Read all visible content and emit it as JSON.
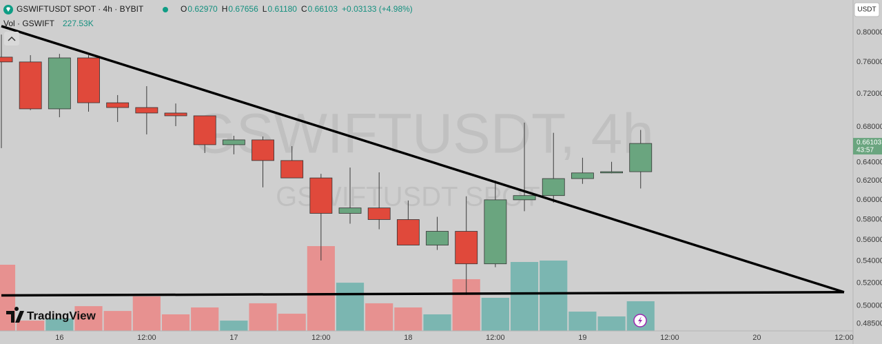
{
  "chart_data": {
    "type": "candlestick",
    "legend": {
      "title": "GSWIFTUSDT SPOT · 4h · BYBIT",
      "items": [
        {
          "key": "O",
          "value": "0.62970"
        },
        {
          "key": "H",
          "value": "0.67656"
        },
        {
          "key": "L",
          "value": "0.61180"
        },
        {
          "key": "C",
          "value": "0.66103"
        }
      ],
      "change": "+0.03133 (+4.98%)"
    },
    "watermark": "GSWIFTUSDT, 4h",
    "watermark_sub": "GSWIFTUSDT SPOT",
    "currency": "USDT",
    "logo": "TradingView",
    "price_label": {
      "text": "0.66103",
      "countdown": "43:57"
    },
    "categories": [
      null,
      null,
      "16",
      null,
      null,
      "12:00",
      null,
      null,
      "17",
      null,
      null,
      "12:00",
      null,
      null,
      "18",
      null,
      null,
      "12:00",
      null,
      null,
      "19",
      null,
      null,
      "12:00",
      null,
      null,
      "20",
      null,
      null,
      "12:00"
    ],
    "open": [
      0.7667,
      0.7604,
      0.7015,
      0.7657,
      0.7089,
      0.7031,
      0.6965,
      0.6932,
      0.6596,
      0.6651,
      0.6419,
      0.623,
      0.5862,
      0.5917,
      0.58,
      0.5551,
      0.5684,
      0.5375,
      0.6,
      0.6044,
      0.6223,
      0.6284,
      0.6297,
      null,
      null,
      null,
      null,
      null,
      null,
      null
    ],
    "high": [
      0.797,
      0.7693,
      0.771,
      0.7693,
      0.7183,
      0.7294,
      0.708,
      0.6932,
      0.6698,
      0.669,
      0.658,
      0.6274,
      0.6342,
      0.629,
      0.5993,
      0.5827,
      0.6036,
      0.6202,
      0.6851,
      0.6732,
      0.645,
      0.6405,
      0.67656,
      null,
      null,
      null,
      null,
      null,
      null,
      null
    ],
    "low": [
      0.6557,
      0.7,
      0.6915,
      0.6981,
      0.6859,
      0.6714,
      0.681,
      0.6503,
      0.6488,
      0.613,
      0.623,
      0.5406,
      0.5759,
      0.5704,
      0.5551,
      0.5505,
      0.5096,
      0.5344,
      0.5884,
      0.5971,
      0.6167,
      0.628,
      0.6118,
      null,
      null,
      null,
      null,
      null,
      null,
      null
    ],
    "close": [
      0.7604,
      0.7015,
      0.7657,
      0.7089,
      0.7031,
      0.6965,
      0.6932,
      0.6596,
      0.6651,
      0.6419,
      0.623,
      0.5862,
      0.5917,
      0.58,
      0.5551,
      0.5684,
      0.5375,
      0.6,
      0.6044,
      0.6223,
      0.6284,
      0.6297,
      0.66103,
      null,
      null,
      null,
      null,
      null,
      null,
      null
    ],
    "up_color": "#6aa57f",
    "down_color": "#e0493b",
    "ylim": [
      0.479,
      0.8458
    ],
    "log": true,
    "grid": false,
    "yticks": [
      {
        "value": 0.8,
        "label": "0.80000"
      },
      {
        "value": 0.76,
        "label": "0.76000"
      },
      {
        "value": 0.72,
        "label": "0.72000"
      },
      {
        "value": 0.68,
        "label": "0.68000"
      },
      {
        "value": 0.64,
        "label": "0.64000"
      },
      {
        "value": 0.62,
        "label": "0.62000"
      },
      {
        "value": 0.6,
        "label": "0.60000"
      },
      {
        "value": 0.58,
        "label": "0.58000"
      },
      {
        "value": 0.56,
        "label": "0.56000"
      },
      {
        "value": 0.54,
        "label": "0.54000"
      },
      {
        "value": 0.52,
        "label": "0.52000"
      },
      {
        "value": 0.5,
        "label": "0.50000"
      },
      {
        "value": 0.485,
        "label": "0.48500"
      }
    ],
    "volume": {
      "name": "Vol · GSWIFT",
      "last_label": "227.53K",
      "values": [
        508000,
        79000,
        95000,
        190000,
        153000,
        265000,
        127000,
        180000,
        79000,
        212000,
        132000,
        651000,
        370000,
        212000,
        180000,
        127000,
        397000,
        254000,
        529000,
        540000,
        148000,
        111000,
        227530,
        null,
        null,
        null,
        null,
        null,
        null,
        null
      ],
      "ylim": [
        0,
        2540000
      ],
      "up_color": "#7bb6b1",
      "down_color": "#e79190"
    },
    "trendlines": [
      {
        "x": [
          0,
          29
        ],
        "y": [
          0.8086,
          0.512
        ],
        "color": "#000000"
      },
      {
        "x": [
          0,
          29
        ],
        "y": [
          0.5091,
          0.512
        ],
        "color": "#000000"
      }
    ]
  }
}
